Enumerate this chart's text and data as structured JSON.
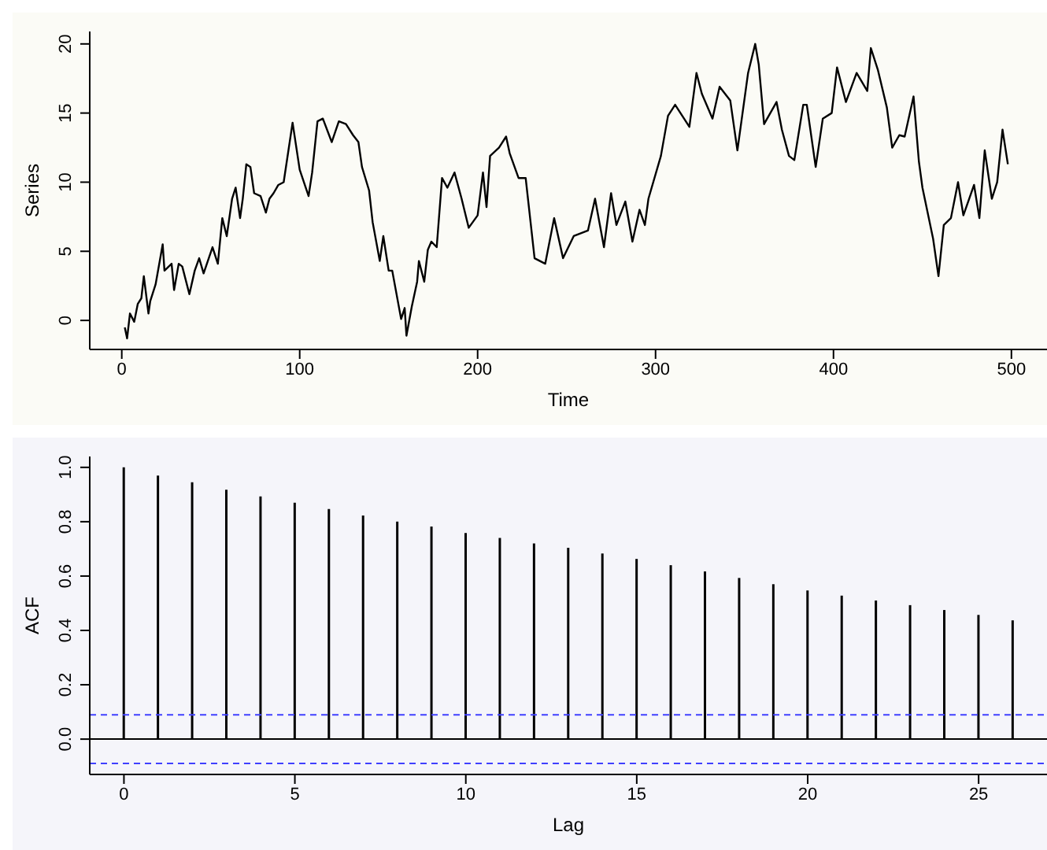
{
  "chart_data": [
    {
      "type": "line",
      "xlabel": "Time",
      "ylabel": "Series",
      "xlim": [
        -18,
        520
      ],
      "ylim": [
        -2.1,
        20.9
      ],
      "xticks": [
        0,
        100,
        200,
        300,
        400,
        500
      ],
      "yticks": [
        0,
        5,
        10,
        15,
        20
      ],
      "marker": "none",
      "line_style": "solid",
      "series": [
        {
          "color": "#000000",
          "x": [
            1.7,
            3,
            4.6,
            7,
            9,
            11,
            12.4,
            15,
            16,
            19,
            23,
            24,
            28,
            29.4,
            32,
            34,
            38,
            41,
            43.5,
            46,
            51,
            54,
            56.5,
            59,
            62,
            64,
            66.5,
            68,
            70,
            72.3,
            74.4,
            78,
            81,
            83,
            85.3,
            88,
            91,
            96,
            100,
            105,
            107,
            110,
            113,
            118,
            122,
            126,
            130,
            133,
            135,
            139,
            141,
            145,
            147,
            150,
            152,
            157,
            159,
            160,
            163,
            166,
            167,
            170,
            172,
            174,
            177,
            180,
            183,
            187,
            191,
            195,
            200,
            203,
            205,
            207,
            212,
            216,
            218,
            223,
            227,
            232,
            238,
            243,
            248,
            254,
            258,
            262,
            266,
            271,
            275,
            278,
            283,
            287,
            291,
            294,
            296,
            303,
            307,
            311,
            319,
            323,
            326,
            332,
            336,
            342,
            346,
            352,
            356,
            358,
            361,
            368,
            371,
            375,
            378,
            383,
            385,
            390,
            394,
            399,
            402,
            407,
            413,
            419,
            421,
            425,
            430,
            433,
            437,
            440,
            445,
            448,
            450,
            456,
            459,
            462,
            466,
            470,
            473,
            479,
            482,
            485,
            489,
            492,
            495,
            498
          ],
          "values": [
            -0.5,
            -1.3,
            0.5,
            -0.1,
            1.2,
            1.6,
            3.2,
            0.5,
            1.4,
            2.6,
            5.5,
            3.6,
            4.1,
            2.2,
            4.1,
            3.9,
            1.9,
            3.6,
            4.5,
            3.4,
            5.3,
            4.1,
            7.4,
            6.1,
            8.8,
            9.6,
            7.4,
            8.8,
            11.3,
            11.1,
            9.2,
            9,
            7.8,
            8.8,
            9.2,
            9.8,
            10,
            14.3,
            10.9,
            9,
            10.7,
            14.4,
            14.6,
            12.9,
            14.4,
            14.2,
            13.4,
            12.9,
            11.1,
            9.4,
            7.1,
            4.3,
            6.1,
            3.6,
            3.6,
            0.1,
            0.9,
            -1.1,
            1,
            2.8,
            4.3,
            2.8,
            5.1,
            5.7,
            5.3,
            10.3,
            9.6,
            10.7,
            8.8,
            6.7,
            7.6,
            10.7,
            8.2,
            11.9,
            12.5,
            13.3,
            12.1,
            10.3,
            10.3,
            4.5,
            4.1,
            7.4,
            4.5,
            6.1,
            6.3,
            6.5,
            8.8,
            5.3,
            9.2,
            6.9,
            8.6,
            5.7,
            8,
            6.9,
            8.8,
            11.9,
            14.8,
            15.6,
            14,
            17.9,
            16.4,
            14.6,
            16.9,
            15.9,
            12.3,
            17.9,
            20,
            18.5,
            14.2,
            15.8,
            13.8,
            11.9,
            11.6,
            15.6,
            15.6,
            11.1,
            14.6,
            15,
            18.3,
            15.8,
            17.9,
            16.6,
            19.7,
            18.1,
            15.4,
            12.5,
            13.4,
            13.3,
            16.2,
            11.5,
            9.6,
            5.9,
            3.2,
            6.9,
            7.4,
            10,
            7.6,
            9.8,
            7.4,
            12.3,
            8.8,
            10,
            13.8,
            11.3
          ]
        }
      ]
    },
    {
      "type": "bar",
      "xlabel": "Lag",
      "ylabel": "ACF",
      "x": [
        0,
        1,
        2,
        3,
        4,
        5,
        6,
        7,
        8,
        9,
        10,
        11,
        12,
        13,
        14,
        15,
        16,
        17,
        18,
        19,
        20,
        21,
        22,
        23,
        24,
        25,
        26
      ],
      "xlim": [
        -1,
        27
      ],
      "ylim": [
        -0.13,
        1.04
      ],
      "xticks": [
        0,
        5,
        10,
        15,
        20,
        25
      ],
      "yticks": [
        {
          "value": 0,
          "label": "0.0"
        },
        0.2,
        0.4,
        0.6,
        0.8,
        {
          "value": 1,
          "label": "1.0"
        }
      ],
      "series": [
        {
          "color": "#000000",
          "values": [
            1.0,
            0.97,
            0.945,
            0.918,
            0.893,
            0.87,
            0.847,
            0.823,
            0.8,
            0.782,
            0.758,
            0.74,
            0.72,
            0.704,
            0.683,
            0.663,
            0.64,
            0.617,
            0.593,
            0.57,
            0.547,
            0.528,
            0.51,
            0.493,
            0.475,
            0.457,
            0.437
          ]
        }
      ],
      "ref_lines": [
        {
          "axis": "y",
          "value": 0,
          "color": "#000000",
          "line_style": "solid"
        },
        {
          "axis": "y",
          "value": 0.0894,
          "color": "#4040ff",
          "line_style": "dashed"
        },
        {
          "axis": "y",
          "value": -0.0894,
          "color": "#4040ff",
          "line_style": "dashed"
        }
      ]
    }
  ]
}
